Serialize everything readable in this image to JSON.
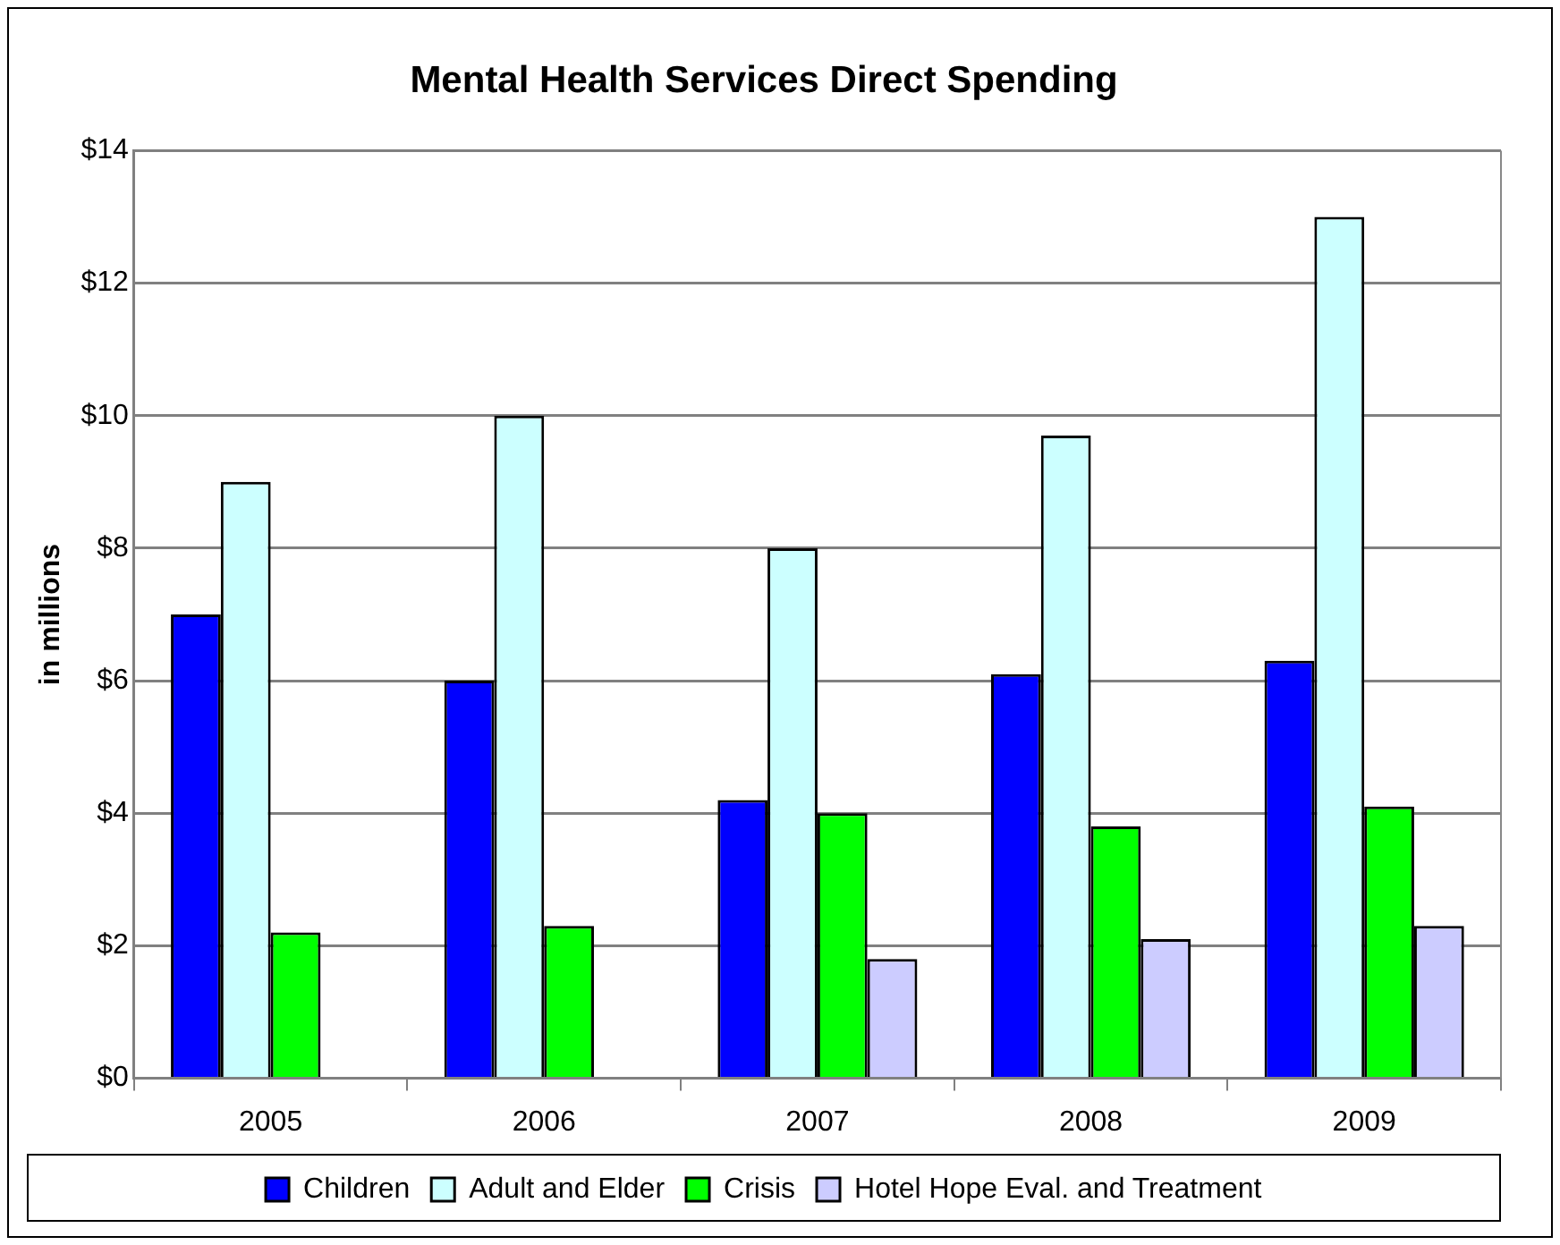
{
  "chart_data": {
    "type": "bar",
    "title": "Mental Health Services Direct Spending",
    "ylabel": "in millions",
    "categories": [
      "2005",
      "2006",
      "2007",
      "2008",
      "2009"
    ],
    "series": [
      {
        "name": "Children",
        "color": "#0000ff",
        "values": [
          7.0,
          6.0,
          4.2,
          6.1,
          6.3
        ]
      },
      {
        "name": "Adult and Elder",
        "color": "#ccffff",
        "values": [
          9.0,
          10.0,
          8.0,
          9.7,
          13.0
        ]
      },
      {
        "name": "Crisis",
        "color": "#00ff00",
        "values": [
          2.2,
          2.3,
          4.0,
          3.8,
          4.1
        ]
      },
      {
        "name": "Hotel Hope Eval. and Treatment",
        "color": "#ccccff",
        "values": [
          null,
          null,
          1.8,
          2.1,
          2.3
        ]
      }
    ],
    "ylim": [
      0,
      14
    ],
    "yticks": [
      {
        "value": 0,
        "label": "$0"
      },
      {
        "value": 2,
        "label": "$2"
      },
      {
        "value": 4,
        "label": "$4"
      },
      {
        "value": 6,
        "label": "$6"
      },
      {
        "value": 8,
        "label": "$8"
      },
      {
        "value": 10,
        "label": "$10"
      },
      {
        "value": 12,
        "label": "$12"
      },
      {
        "value": 14,
        "label": "$14"
      }
    ],
    "grid": "y",
    "legend": "bottom"
  }
}
